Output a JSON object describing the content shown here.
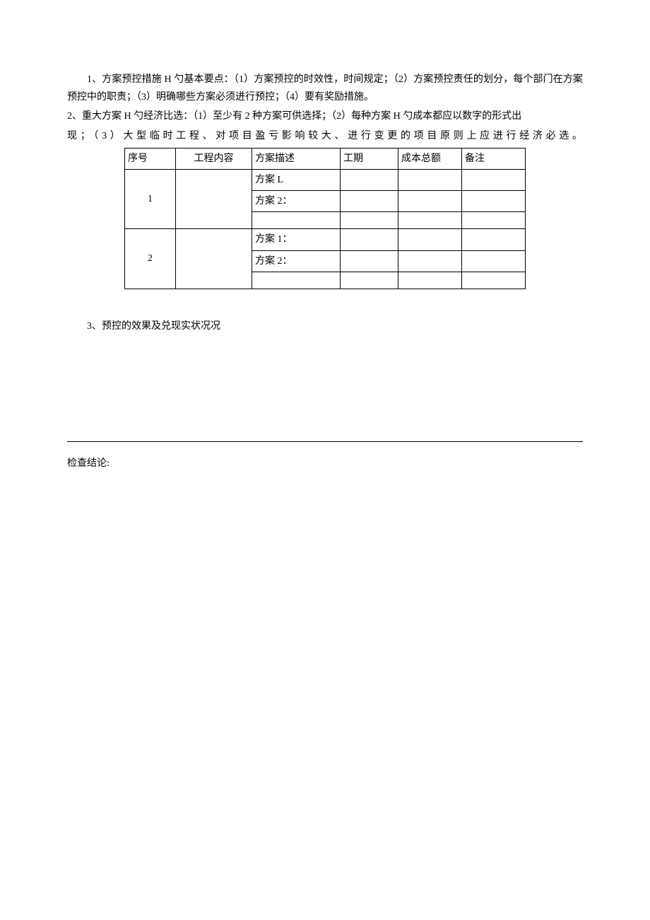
{
  "paragraphs": {
    "p1": "1、方案预控措施 H 勺基本要点：（1）方案预控的时效性，时间规定；（2）方案预控责任的划分，每个部门在方案预控中的职责；（3）明确哪些方案必须进行预控；（4）要有奖励措施。",
    "p2a": "2、重大方案 H 勺经济比选：（1）至少有 2 种方案可供选择；（2）每种方案 H 勺成本都应以数字的形式出",
    "p2b": "现；（3）大型临时工程、对项目盈亏影响较大、进行变更的项目原则上应进行经济必选。",
    "p3": "3、预控的效果及兑现实状况况",
    "conclusion_label": "检查结论:"
  },
  "table": {
    "headers": {
      "h1": "序号",
      "h2": "工程内容",
      "h3": "方案描述",
      "h4": "工期",
      "h5": "成本总额",
      "h6": "备注"
    },
    "rows": [
      {
        "seq": "1",
        "schemes": [
          "方案 L",
          "方案 2：",
          ""
        ]
      },
      {
        "seq": "2",
        "schemes": [
          "方案 1：",
          "方案 2：",
          ""
        ]
      }
    ]
  },
  "style": {
    "background_color": "#ffffff",
    "text_color": "#000000",
    "border_color": "#000000",
    "font_size": 14
  }
}
